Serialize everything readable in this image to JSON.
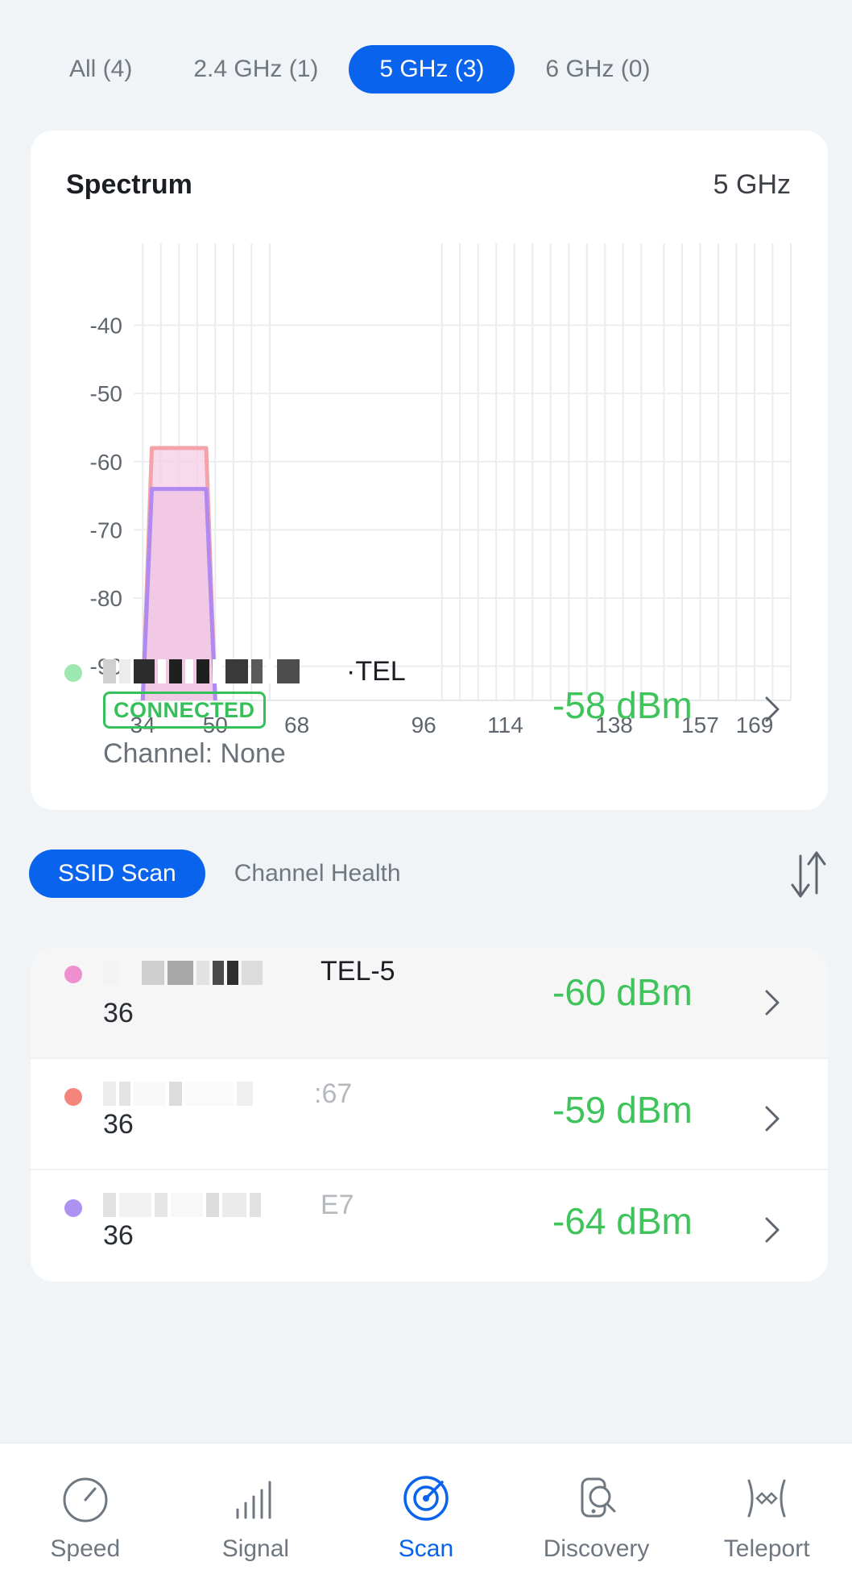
{
  "band_tabs": [
    {
      "label": "All (4)",
      "active": false
    },
    {
      "label": "2.4 GHz (1)",
      "active": false
    },
    {
      "label": "5 GHz (3)",
      "active": true
    },
    {
      "label": "6 GHz (0)",
      "active": false
    }
  ],
  "spectrum": {
    "title": "Spectrum",
    "band": "5 GHz"
  },
  "chart_data": {
    "type": "area",
    "title": "",
    "xlabel": "",
    "ylabel": "",
    "x_ticks": [
      34,
      50,
      68,
      96,
      114,
      138,
      157,
      169
    ],
    "y_ticks": [
      -40,
      -50,
      -60,
      -70,
      -80,
      -90
    ],
    "xlim": [
      32,
      177
    ],
    "ylim": [
      -95,
      -28
    ],
    "grid": true,
    "legend": "none",
    "series": [
      {
        "color": "#f4a3a8",
        "fill": "#f6cde6",
        "x_start": 34,
        "x_end": 50,
        "top_start": 36,
        "top_end": 48,
        "value": -58
      },
      {
        "color": "#b08af0",
        "fill": "#f0c3e2",
        "x_start": 34,
        "x_end": 50,
        "top_start": 36,
        "top_end": 48,
        "value": -64
      }
    ]
  },
  "connected": {
    "ssid_suffix": "TEL",
    "badge": "CONNECTED",
    "channel": "Channel: None",
    "dbm": "-58 dBm",
    "dot_color": "#9de8b0"
  },
  "scan_tabs": [
    {
      "label": "SSID Scan",
      "active": true
    },
    {
      "label": "Channel Health",
      "active": false
    }
  ],
  "ssid_list": [
    {
      "ssid_suffix": "TEL-5",
      "channel": "36",
      "dbm": "-60 dBm",
      "dot_color": "#ee8fd0"
    },
    {
      "ssid_suffix": ":67",
      "channel": "36",
      "dbm": "-59 dBm",
      "dot_color": "#f4857d"
    },
    {
      "ssid_suffix": "E7",
      "channel": "36",
      "dbm": "-64 dBm",
      "dot_color": "#ad92f2"
    }
  ],
  "nav": [
    {
      "label": "Speed",
      "icon": "speedometer-icon",
      "active": false
    },
    {
      "label": "Signal",
      "icon": "signal-bars-icon",
      "active": false
    },
    {
      "label": "Scan",
      "icon": "radar-icon",
      "active": true
    },
    {
      "label": "Discovery",
      "icon": "device-search-icon",
      "active": false
    },
    {
      "label": "Teleport",
      "icon": "teleport-icon",
      "active": false
    }
  ],
  "colors": {
    "accent": "#0a63ec",
    "signal_good": "#3ec45a",
    "connected_badge": "#35c05a"
  }
}
